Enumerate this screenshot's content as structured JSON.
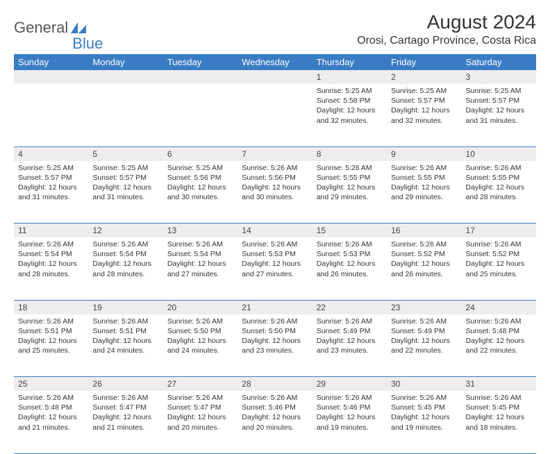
{
  "brand": {
    "text1": "General",
    "text2": "Blue",
    "logo_color": "#3a7cc4"
  },
  "header": {
    "month": "August 2024",
    "location": "Orosi, Cartago Province, Costa Rica"
  },
  "style": {
    "header_bg": "#3a7cc4",
    "header_text": "#ffffff",
    "daynum_bg": "#ededed",
    "border_color": "#3a7cc4",
    "body_text": "#333333",
    "cell_fontsize": 10.5,
    "month_fontsize": 28,
    "location_fontsize": 16
  },
  "weekdays": [
    "Sunday",
    "Monday",
    "Tuesday",
    "Wednesday",
    "Thursday",
    "Friday",
    "Saturday"
  ],
  "weeks": [
    [
      null,
      null,
      null,
      null,
      {
        "n": "1",
        "sr": "5:25 AM",
        "ss": "5:58 PM",
        "dl": "12 hours and 32 minutes."
      },
      {
        "n": "2",
        "sr": "5:25 AM",
        "ss": "5:57 PM",
        "dl": "12 hours and 32 minutes."
      },
      {
        "n": "3",
        "sr": "5:25 AM",
        "ss": "5:57 PM",
        "dl": "12 hours and 31 minutes."
      }
    ],
    [
      {
        "n": "4",
        "sr": "5:25 AM",
        "ss": "5:57 PM",
        "dl": "12 hours and 31 minutes."
      },
      {
        "n": "5",
        "sr": "5:25 AM",
        "ss": "5:57 PM",
        "dl": "12 hours and 31 minutes."
      },
      {
        "n": "6",
        "sr": "5:25 AM",
        "ss": "5:56 PM",
        "dl": "12 hours and 30 minutes."
      },
      {
        "n": "7",
        "sr": "5:26 AM",
        "ss": "5:56 PM",
        "dl": "12 hours and 30 minutes."
      },
      {
        "n": "8",
        "sr": "5:26 AM",
        "ss": "5:55 PM",
        "dl": "12 hours and 29 minutes."
      },
      {
        "n": "9",
        "sr": "5:26 AM",
        "ss": "5:55 PM",
        "dl": "12 hours and 29 minutes."
      },
      {
        "n": "10",
        "sr": "5:26 AM",
        "ss": "5:55 PM",
        "dl": "12 hours and 28 minutes."
      }
    ],
    [
      {
        "n": "11",
        "sr": "5:26 AM",
        "ss": "5:54 PM",
        "dl": "12 hours and 28 minutes."
      },
      {
        "n": "12",
        "sr": "5:26 AM",
        "ss": "5:54 PM",
        "dl": "12 hours and 28 minutes."
      },
      {
        "n": "13",
        "sr": "5:26 AM",
        "ss": "5:54 PM",
        "dl": "12 hours and 27 minutes."
      },
      {
        "n": "14",
        "sr": "5:26 AM",
        "ss": "5:53 PM",
        "dl": "12 hours and 27 minutes."
      },
      {
        "n": "15",
        "sr": "5:26 AM",
        "ss": "5:53 PM",
        "dl": "12 hours and 26 minutes."
      },
      {
        "n": "16",
        "sr": "5:26 AM",
        "ss": "5:52 PM",
        "dl": "12 hours and 26 minutes."
      },
      {
        "n": "17",
        "sr": "5:26 AM",
        "ss": "5:52 PM",
        "dl": "12 hours and 25 minutes."
      }
    ],
    [
      {
        "n": "18",
        "sr": "5:26 AM",
        "ss": "5:51 PM",
        "dl": "12 hours and 25 minutes."
      },
      {
        "n": "19",
        "sr": "5:26 AM",
        "ss": "5:51 PM",
        "dl": "12 hours and 24 minutes."
      },
      {
        "n": "20",
        "sr": "5:26 AM",
        "ss": "5:50 PM",
        "dl": "12 hours and 24 minutes."
      },
      {
        "n": "21",
        "sr": "5:26 AM",
        "ss": "5:50 PM",
        "dl": "12 hours and 23 minutes."
      },
      {
        "n": "22",
        "sr": "5:26 AM",
        "ss": "5:49 PM",
        "dl": "12 hours and 23 minutes."
      },
      {
        "n": "23",
        "sr": "5:26 AM",
        "ss": "5:49 PM",
        "dl": "12 hours and 22 minutes."
      },
      {
        "n": "24",
        "sr": "5:26 AM",
        "ss": "5:48 PM",
        "dl": "12 hours and 22 minutes."
      }
    ],
    [
      {
        "n": "25",
        "sr": "5:26 AM",
        "ss": "5:48 PM",
        "dl": "12 hours and 21 minutes."
      },
      {
        "n": "26",
        "sr": "5:26 AM",
        "ss": "5:47 PM",
        "dl": "12 hours and 21 minutes."
      },
      {
        "n": "27",
        "sr": "5:26 AM",
        "ss": "5:47 PM",
        "dl": "12 hours and 20 minutes."
      },
      {
        "n": "28",
        "sr": "5:26 AM",
        "ss": "5:46 PM",
        "dl": "12 hours and 20 minutes."
      },
      {
        "n": "29",
        "sr": "5:26 AM",
        "ss": "5:46 PM",
        "dl": "12 hours and 19 minutes."
      },
      {
        "n": "30",
        "sr": "5:26 AM",
        "ss": "5:45 PM",
        "dl": "12 hours and 19 minutes."
      },
      {
        "n": "31",
        "sr": "5:26 AM",
        "ss": "5:45 PM",
        "dl": "12 hours and 18 minutes."
      }
    ]
  ],
  "labels": {
    "sunrise": "Sunrise:",
    "sunset": "Sunset:",
    "daylight": "Daylight:"
  }
}
